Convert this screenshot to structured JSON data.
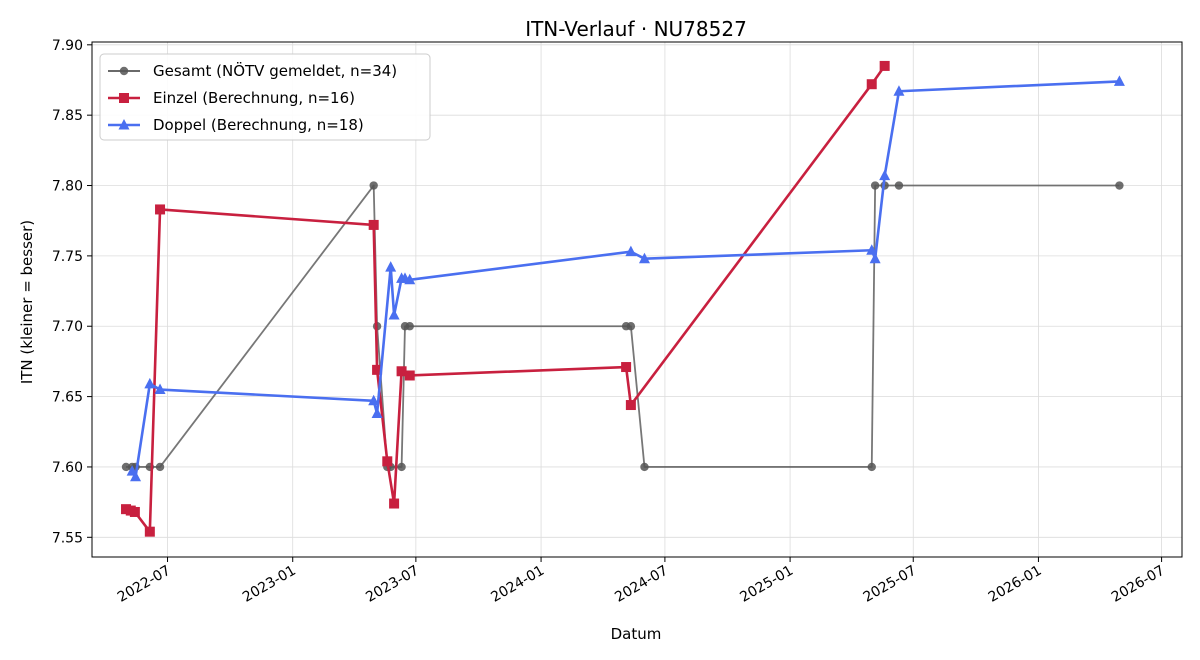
{
  "chart_data": {
    "type": "line",
    "title": "ITN-Verlauf · NU78527",
    "xlabel": "Datum",
    "ylabel": "ITN  (kleiner = besser)",
    "x_axis_type": "date",
    "xlim": [
      "2022-03-12",
      "2026-07-31"
    ],
    "ylim": [
      7.536,
      7.902
    ],
    "x_ticks": [
      "2022-07-01",
      "2023-01-01",
      "2023-07-01",
      "2024-01-01",
      "2024-07-01",
      "2025-01-01",
      "2025-07-01",
      "2026-01-01",
      "2026-07-01"
    ],
    "x_tick_labels": [
      "2022-07",
      "2023-01",
      "2023-07",
      "2024-01",
      "2024-07",
      "2025-01",
      "2025-07",
      "2026-01",
      "2026-07"
    ],
    "y_ticks": [
      7.55,
      7.6,
      7.65,
      7.7,
      7.75,
      7.8,
      7.85,
      7.9
    ],
    "y_tick_labels": [
      "7.55",
      "7.60",
      "7.65",
      "7.70",
      "7.75",
      "7.80",
      "7.85",
      "7.90"
    ],
    "grid": true,
    "legend_position": "top-left",
    "series": [
      {
        "name": "Gesamt (NÖTV gemeldet, n=34)",
        "color": "#555555",
        "marker": "circle",
        "points": [
          {
            "x": "2022-05-01",
            "y": 7.6
          },
          {
            "x": "2022-05-10",
            "y": 7.6
          },
          {
            "x": "2022-05-15",
            "y": 7.6
          },
          {
            "x": "2022-06-05",
            "y": 7.6
          },
          {
            "x": "2022-06-20",
            "y": 7.6
          },
          {
            "x": "2023-04-30",
            "y": 7.8
          },
          {
            "x": "2023-05-05",
            "y": 7.7
          },
          {
            "x": "2023-05-20",
            "y": 7.6
          },
          {
            "x": "2023-05-25",
            "y": 7.6
          },
          {
            "x": "2023-06-10",
            "y": 7.6
          },
          {
            "x": "2023-06-15",
            "y": 7.7
          },
          {
            "x": "2023-06-22",
            "y": 7.7
          },
          {
            "x": "2024-05-05",
            "y": 7.7
          },
          {
            "x": "2024-05-12",
            "y": 7.7
          },
          {
            "x": "2024-06-01",
            "y": 7.6
          },
          {
            "x": "2025-05-01",
            "y": 7.6
          },
          {
            "x": "2025-05-06",
            "y": 7.8
          },
          {
            "x": "2025-05-20",
            "y": 7.8
          },
          {
            "x": "2025-06-10",
            "y": 7.8
          },
          {
            "x": "2026-04-30",
            "y": 7.8
          }
        ]
      },
      {
        "name": "Einzel (Berechnung, n=16)",
        "color": "#c8203f",
        "marker": "square",
        "points": [
          {
            "x": "2022-05-01",
            "y": 7.57
          },
          {
            "x": "2022-05-08",
            "y": 7.569
          },
          {
            "x": "2022-05-14",
            "y": 7.568
          },
          {
            "x": "2022-06-05",
            "y": 7.554
          },
          {
            "x": "2022-06-20",
            "y": 7.783
          },
          {
            "x": "2023-04-30",
            "y": 7.772
          },
          {
            "x": "2023-05-05",
            "y": 7.669
          },
          {
            "x": "2023-05-20",
            "y": 7.604
          },
          {
            "x": "2023-05-30",
            "y": 7.574
          },
          {
            "x": "2023-06-10",
            "y": 7.668
          },
          {
            "x": "2023-06-22",
            "y": 7.665
          },
          {
            "x": "2024-05-05",
            "y": 7.671
          },
          {
            "x": "2024-05-12",
            "y": 7.644
          },
          {
            "x": "2025-05-01",
            "y": 7.872
          },
          {
            "x": "2025-05-20",
            "y": 7.885
          }
        ]
      },
      {
        "name": "Doppel (Berechnung, n=18)",
        "color": "#4a6ff0",
        "marker": "triangle",
        "points": [
          {
            "x": "2022-05-10",
            "y": 7.597
          },
          {
            "x": "2022-05-15",
            "y": 7.593
          },
          {
            "x": "2022-06-05",
            "y": 7.659
          },
          {
            "x": "2022-06-20",
            "y": 7.655
          },
          {
            "x": "2023-04-30",
            "y": 7.647
          },
          {
            "x": "2023-05-05",
            "y": 7.638
          },
          {
            "x": "2023-05-25",
            "y": 7.742
          },
          {
            "x": "2023-05-30",
            "y": 7.708
          },
          {
            "x": "2023-06-10",
            "y": 7.734
          },
          {
            "x": "2023-06-15",
            "y": 7.734
          },
          {
            "x": "2023-06-22",
            "y": 7.733
          },
          {
            "x": "2024-05-12",
            "y": 7.753
          },
          {
            "x": "2024-06-01",
            "y": 7.748
          },
          {
            "x": "2025-05-01",
            "y": 7.754
          },
          {
            "x": "2025-05-06",
            "y": 7.748
          },
          {
            "x": "2025-05-20",
            "y": 7.807
          },
          {
            "x": "2025-06-10",
            "y": 7.867
          },
          {
            "x": "2026-04-30",
            "y": 7.874
          }
        ]
      }
    ]
  }
}
